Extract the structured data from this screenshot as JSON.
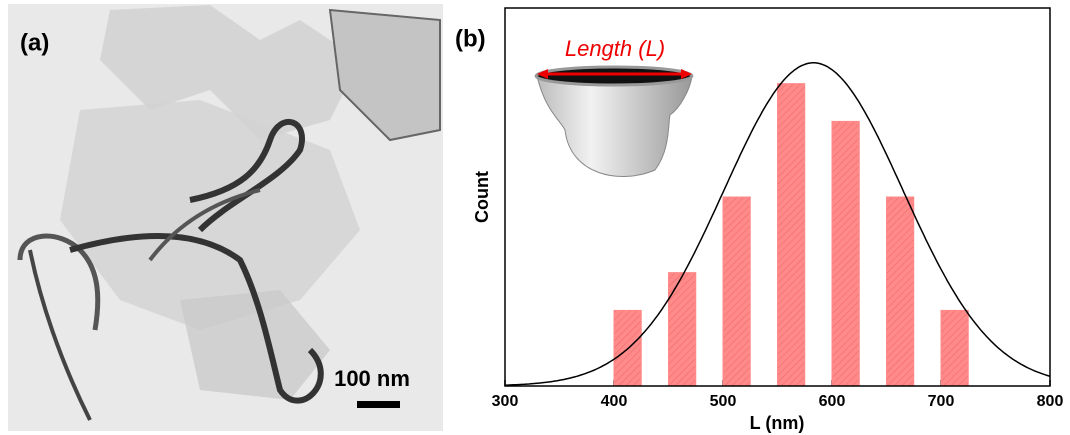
{
  "panel_a": {
    "label": "(a)",
    "scale_bar": "100 nm"
  },
  "chart_data": {
    "type": "bar",
    "label": "(b)",
    "x_label": "L (nm)",
    "y_label": "Count",
    "annotation": "Length (L)",
    "x": [
      412.5,
      462.5,
      512.5,
      562.5,
      612.5,
      662.5,
      712.5
    ],
    "values": [
      2,
      3,
      5,
      8,
      7,
      5,
      2
    ],
    "color": "#ff8a8a",
    "xlim": [
      300,
      800
    ],
    "xticks": [
      300,
      400,
      500,
      600,
      700,
      800
    ],
    "ylim": [
      0,
      10
    ],
    "fit": {
      "mean": 583,
      "sigma": 82,
      "amplitude": 8.55
    }
  }
}
